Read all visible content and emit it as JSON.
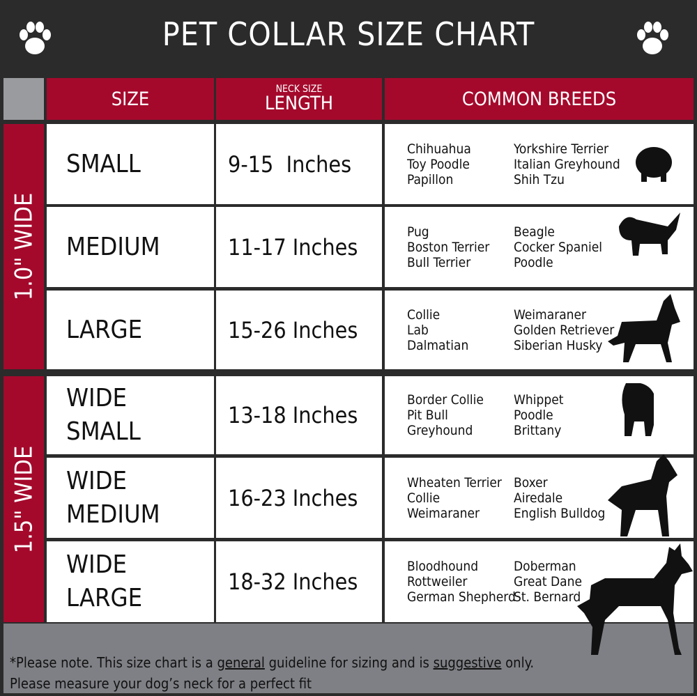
{
  "title": "PET COLLAR SIZE CHART",
  "header": {
    "size": "SIZE",
    "neck_size": "NECK SIZE",
    "length": "LENGTH",
    "breeds": "COMMON BREEDS"
  },
  "groups": [
    "1.0\" WIDE",
    "1.5\" WIDE"
  ],
  "rows": [
    {
      "size": "SMALL",
      "length": "9-15  Inches",
      "breeds_a": [
        "Chihuahua",
        "Toy Poodle",
        "Papillon"
      ],
      "breeds_b": [
        "Yorkshire Terrier",
        "Italian Greyhound",
        "Shih Tzu"
      ]
    },
    {
      "size": "MEDIUM",
      "length": "11-17 Inches",
      "breeds_a": [
        "Pug",
        "Boston Terrier",
        "Bull Terrier"
      ],
      "breeds_b": [
        "Beagle",
        "Cocker Spaniel",
        "Poodle"
      ]
    },
    {
      "size": "LARGE",
      "length": "15-26 Inches",
      "breeds_a": [
        "Collie",
        "Lab",
        "Dalmatian"
      ],
      "breeds_b": [
        "Weimaraner",
        "Golden Retriever",
        "Siberian Husky"
      ]
    },
    {
      "size": "WIDE SMALL",
      "length": "13-18 Inches",
      "breeds_a": [
        "Border Collie",
        "Pit Bull",
        "Greyhound"
      ],
      "breeds_b": [
        "Whippet",
        "Poodle",
        "Brittany"
      ]
    },
    {
      "size": "WIDE MEDIUM",
      "length": "16-23 Inches",
      "breeds_a": [
        "Wheaten Terrier",
        "Collie",
        "Weimaraner"
      ],
      "breeds_b": [
        "Boxer",
        "Airedale",
        "English Bulldog"
      ]
    },
    {
      "size": "WIDE LARGE",
      "length": "18-32 Inches",
      "breeds_a": [
        "Bloodhound",
        "Rottweiler",
        "German Shepherd"
      ],
      "breeds_b": [
        "Doberman",
        "Great Dane",
        "St. Bernard"
      ]
    }
  ],
  "note": {
    "p1": "*Please note. This size chart is a ",
    "u1": "general",
    "p2": " guideline for sizing and is ",
    "u2": "suggestive",
    "p3": " only.",
    "line2": "Please measure your dog’s neck for a perfect fit"
  },
  "colors": {
    "header_red": "#a4092c",
    "background": "#2b2b2b",
    "footer_gray": "#7f8085"
  }
}
